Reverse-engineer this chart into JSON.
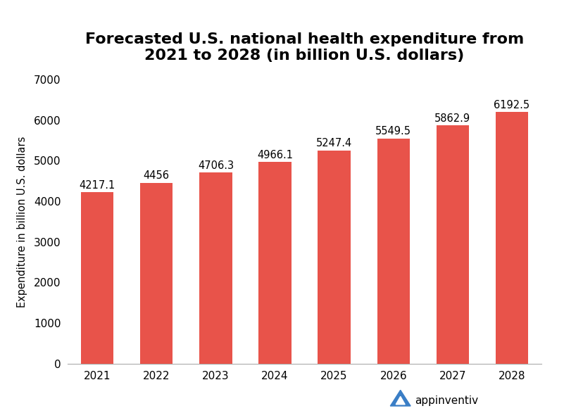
{
  "title": "Forecasted U.S. national health expenditure from\n2021 to 2028 (in billion U.S. dollars)",
  "years": [
    "2021",
    "2022",
    "2023",
    "2024",
    "2025",
    "2026",
    "2027",
    "2028"
  ],
  "values": [
    4217.1,
    4456,
    4706.3,
    4966.1,
    5247.4,
    5549.5,
    5862.9,
    6192.5
  ],
  "bar_color": "#E8534A",
  "ylabel": "Expenditure in billion U.S. dollars",
  "ylim": [
    0,
    7000
  ],
  "yticks": [
    0,
    1000,
    2000,
    3000,
    4000,
    5000,
    6000,
    7000
  ],
  "title_fontsize": 16,
  "label_fontsize": 10.5,
  "tick_fontsize": 11,
  "bar_label_fontsize": 10.5,
  "background_color": "#ffffff",
  "logo_text": "appinventiv",
  "logo_color": "#3A7EC6",
  "bar_width": 0.55
}
